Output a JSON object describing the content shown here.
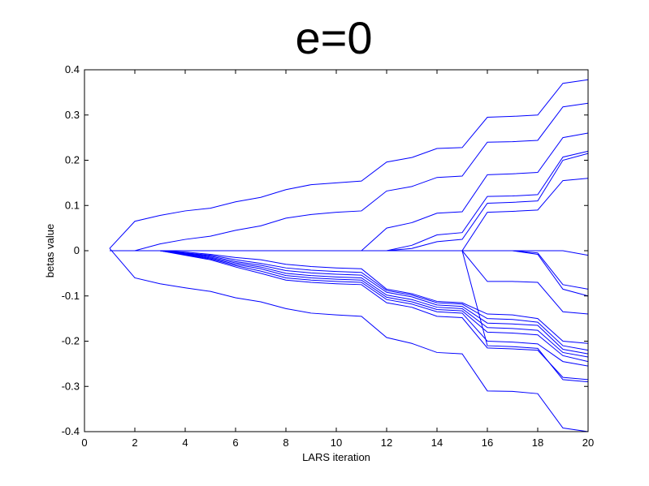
{
  "chart_data": {
    "type": "line",
    "title": "e=0",
    "xlabel": "LARS iteration",
    "ylabel": "betas value",
    "xlim": [
      0,
      20
    ],
    "ylim": [
      -0.4,
      0.4
    ],
    "xticks": [
      0,
      2,
      4,
      6,
      8,
      10,
      12,
      14,
      16,
      18,
      20
    ],
    "yticks": [
      -0.4,
      -0.3,
      -0.2,
      -0.1,
      0,
      0.1,
      0.2,
      0.3,
      0.4
    ],
    "grid": false,
    "line_color": "#0000ff",
    "x": [
      1,
      2,
      3,
      4,
      5,
      6,
      7,
      8,
      9,
      10,
      11,
      12,
      13,
      14,
      15,
      16,
      17,
      18,
      19,
      20
    ],
    "series": [
      {
        "values": [
          0.005,
          0.065,
          0.078,
          0.088,
          0.094,
          0.108,
          0.118,
          0.135,
          0.146,
          0.15,
          0.154,
          0.196,
          0.206,
          0.226,
          0.228,
          0.295,
          0.297,
          0.3,
          0.37,
          0.378
        ]
      },
      {
        "values": [
          0,
          0,
          0.015,
          0.025,
          0.032,
          0.045,
          0.055,
          0.072,
          0.08,
          0.085,
          0.088,
          0.132,
          0.142,
          0.162,
          0.165,
          0.24,
          0.241,
          0.244,
          0.318,
          0.326
        ]
      },
      {
        "values": [
          0,
          0,
          0,
          0,
          0,
          0,
          0,
          0,
          0,
          0,
          0,
          0.05,
          0.062,
          0.083,
          0.086,
          0.168,
          0.17,
          0.173,
          0.25,
          0.26
        ]
      },
      {
        "values": [
          0,
          0,
          0,
          0,
          0,
          0,
          0,
          0,
          0,
          0,
          0,
          0,
          0.012,
          0.035,
          0.04,
          0.12,
          0.121,
          0.124,
          0.207,
          0.22
        ]
      },
      {
        "values": [
          0,
          0,
          0,
          0,
          0,
          0,
          0,
          0,
          0,
          0,
          0,
          0,
          0.005,
          0.02,
          0.025,
          0.105,
          0.107,
          0.11,
          0.2,
          0.215
        ]
      },
      {
        "values": [
          0,
          0,
          0,
          0,
          0,
          0,
          0,
          0,
          0,
          0,
          0,
          0,
          0,
          0,
          0,
          0.085,
          0.087,
          0.09,
          0.155,
          0.16
        ]
      },
      {
        "values": [
          0,
          0,
          0,
          0,
          0,
          0,
          0,
          0,
          0,
          0,
          0,
          0,
          0,
          0,
          0,
          0,
          0,
          0,
          0,
          -0.01
        ]
      },
      {
        "values": [
          0,
          0,
          0,
          0,
          0,
          0,
          0,
          0,
          0,
          0,
          0,
          0,
          0,
          0,
          0,
          0,
          0,
          -0.005,
          -0.075,
          -0.085
        ]
      },
      {
        "values": [
          0,
          0,
          0,
          0,
          0,
          0,
          0,
          0,
          0,
          0,
          0,
          0,
          0,
          0,
          0,
          0,
          0,
          -0.008,
          -0.085,
          -0.1
        ]
      },
      {
        "values": [
          0,
          0,
          0,
          0,
          0,
          0,
          0,
          0,
          0,
          0,
          0,
          0,
          0,
          0,
          0,
          -0.068,
          -0.068,
          -0.07,
          -0.135,
          -0.14
        ]
      },
      {
        "values": [
          0,
          0,
          0,
          -0.003,
          -0.008,
          -0.015,
          -0.02,
          -0.03,
          -0.035,
          -0.038,
          -0.04,
          -0.085,
          -0.095,
          -0.112,
          -0.115,
          -0.14,
          -0.142,
          -0.15,
          -0.2,
          -0.205
        ]
      },
      {
        "values": [
          0,
          0,
          0,
          -0.005,
          -0.01,
          -0.02,
          -0.028,
          -0.038,
          -0.043,
          -0.046,
          -0.048,
          -0.088,
          -0.098,
          -0.115,
          -0.118,
          -0.15,
          -0.152,
          -0.158,
          -0.21,
          -0.22
        ]
      },
      {
        "values": [
          0,
          0,
          0,
          -0.006,
          -0.012,
          -0.024,
          -0.032,
          -0.044,
          -0.049,
          -0.052,
          -0.054,
          -0.092,
          -0.102,
          -0.12,
          -0.123,
          -0.16,
          -0.162,
          -0.165,
          -0.218,
          -0.228
        ]
      },
      {
        "values": [
          0,
          0,
          0,
          -0.007,
          -0.014,
          -0.027,
          -0.036,
          -0.05,
          -0.055,
          -0.058,
          -0.06,
          -0.098,
          -0.108,
          -0.125,
          -0.128,
          -0.17,
          -0.172,
          -0.176,
          -0.225,
          -0.235
        ]
      },
      {
        "values": [
          0,
          0,
          0,
          -0.008,
          -0.016,
          -0.03,
          -0.04,
          -0.055,
          -0.06,
          -0.063,
          -0.065,
          -0.103,
          -0.113,
          -0.13,
          -0.133,
          -0.18,
          -0.182,
          -0.186,
          -0.232,
          -0.245
        ]
      },
      {
        "values": [
          0,
          0,
          0,
          -0.009,
          -0.018,
          -0.033,
          -0.045,
          -0.06,
          -0.065,
          -0.068,
          -0.07,
          -0.108,
          -0.118,
          -0.135,
          -0.138,
          -0.2,
          -0.202,
          -0.206,
          -0.245,
          -0.255
        ]
      },
      {
        "values": [
          0,
          0,
          0,
          -0.01,
          -0.02,
          -0.036,
          -0.05,
          -0.065,
          -0.07,
          -0.073,
          -0.075,
          -0.115,
          -0.125,
          -0.145,
          -0.148,
          -0.215,
          -0.217,
          -0.22,
          -0.28,
          -0.285
        ]
      },
      {
        "values": [
          0,
          0,
          0,
          0,
          0,
          0,
          0,
          0,
          0,
          0,
          0,
          0,
          0,
          0,
          0,
          -0.21,
          -0.212,
          -0.216,
          -0.285,
          -0.29
        ]
      },
      {
        "values": [
          0.005,
          -0.06,
          -0.073,
          -0.082,
          -0.09,
          -0.104,
          -0.113,
          -0.128,
          -0.138,
          -0.142,
          -0.145,
          -0.192,
          -0.205,
          -0.225,
          -0.228,
          -0.31,
          -0.311,
          -0.316,
          -0.392,
          -0.4
        ]
      }
    ]
  }
}
